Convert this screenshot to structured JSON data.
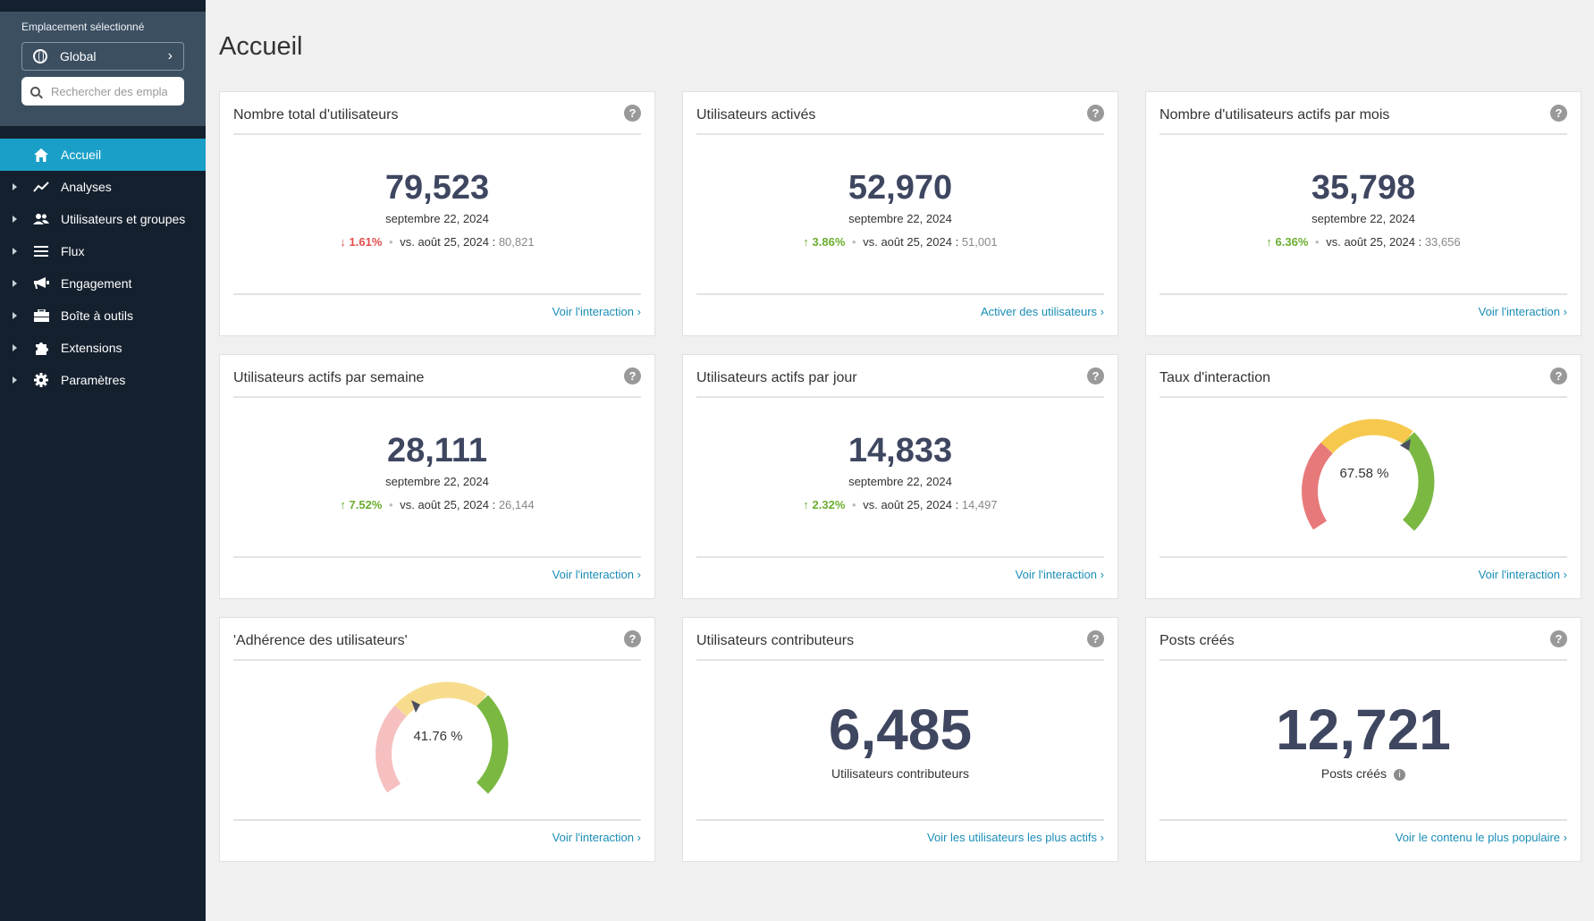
{
  "sidebar": {
    "location_label": "Emplacement sélectionné",
    "location_value": "Global",
    "search_placeholder": "Rechercher des emplacements",
    "items": [
      {
        "label": "Accueil",
        "icon": "home-icon"
      },
      {
        "label": "Analyses",
        "icon": "trend-icon"
      },
      {
        "label": "Utilisateurs et groupes",
        "icon": "users-icon"
      },
      {
        "label": "Flux",
        "icon": "list-icon"
      },
      {
        "label": "Engagement",
        "icon": "megaphone-icon"
      },
      {
        "label": "Boîte à outils",
        "icon": "toolbox-icon"
      },
      {
        "label": "Extensions",
        "icon": "puzzle-icon"
      },
      {
        "label": "Paramètres",
        "icon": "gear-icon"
      }
    ]
  },
  "page": {
    "title": "Accueil"
  },
  "cards": {
    "total_users": {
      "title": "Nombre total d'utilisateurs",
      "value": "79,523",
      "date": "septembre 22, 2024",
      "change": "1.61%",
      "direction": "down",
      "vs_label": "vs. août 25, 2024 :",
      "prev": "80,821",
      "link": "Voir l'interaction"
    },
    "activated_users": {
      "title": "Utilisateurs activés",
      "value": "52,970",
      "date": "septembre 22, 2024",
      "change": "3.86%",
      "direction": "up",
      "vs_label": "vs. août 25, 2024 :",
      "prev": "51,001",
      "link": "Activer des utilisateurs"
    },
    "monthly_active": {
      "title": "Nombre d'utilisateurs actifs par mois",
      "value": "35,798",
      "date": "septembre 22, 2024",
      "change": "6.36%",
      "direction": "up",
      "vs_label": "vs. août 25, 2024 :",
      "prev": "33,656",
      "link": "Voir l'interaction"
    },
    "weekly_active": {
      "title": "Utilisateurs actifs par semaine",
      "value": "28,111",
      "date": "septembre 22, 2024",
      "change": "7.52%",
      "direction": "up",
      "vs_label": "vs. août 25, 2024 :",
      "prev": "26,144",
      "link": "Voir l'interaction"
    },
    "daily_active": {
      "title": "Utilisateurs actifs par jour",
      "value": "14,833",
      "date": "septembre 22, 2024",
      "change": "2.32%",
      "direction": "up",
      "vs_label": "vs. août 25, 2024 :",
      "prev": "14,497",
      "link": "Voir l'interaction"
    },
    "interaction_rate": {
      "title": "Taux d'interaction",
      "gauge_text": "67.58 %",
      "gauge_value": 67.58,
      "link": "Voir l'interaction"
    },
    "adherence": {
      "title": "'Adhérence des utilisateurs'",
      "gauge_text": "41.76 %",
      "gauge_value": 41.76,
      "link": "Voir l'interaction"
    },
    "contributors": {
      "title": "Utilisateurs contributeurs",
      "value": "6,485",
      "sub": "Utilisateurs contributeurs",
      "link": "Voir les utilisateurs les plus actifs"
    },
    "posts": {
      "title": "Posts créés",
      "value": "12,721",
      "sub": "Posts créés",
      "link": "Voir le contenu le plus populaire"
    }
  },
  "colors": {
    "accent": "#1aa0c8",
    "sidebar_bg": "#14202e",
    "up": "#6aad2e",
    "down": "#e34d4d",
    "link": "#1a8db6",
    "gauge_red": "#e8797a",
    "gauge_yellow": "#f6c94e",
    "gauge_green": "#7bb842"
  }
}
